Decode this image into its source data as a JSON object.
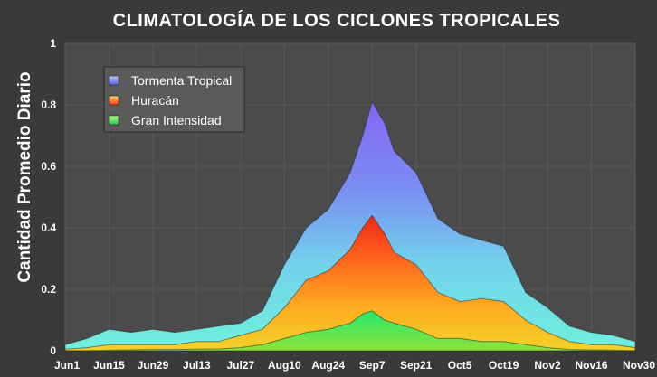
{
  "chart_data": {
    "type": "area",
    "title": "CLIMATOLOGÍA DE LOS CICLONES TROPICALES",
    "xlabel": "",
    "ylabel": "Cantidad Promedio Diario",
    "x_tick_labels": [
      "Jun1",
      "Jun15",
      "Jun29",
      "Jul13",
      "Jul27",
      "Aug10",
      "Aug24",
      "Sep7",
      "Sep21",
      "Oct5",
      "Oct19",
      "Nov2",
      "Nov16",
      "Nov30"
    ],
    "y_tick_labels": [
      "0",
      "0.2",
      "0.4",
      "0.6",
      "0.8",
      "1"
    ],
    "ylim": [
      0,
      1
    ],
    "grid": true,
    "legend_position": "top-left",
    "series": [
      {
        "name": "Tormenta Tropical",
        "color": "#7b82f2",
        "points": [
          [
            "Jun1",
            0.02
          ],
          [
            "Jun8",
            0.04
          ],
          [
            "Jun15",
            0.07
          ],
          [
            "Jun22",
            0.06
          ],
          [
            "Jun29",
            0.07
          ],
          [
            "Jul6",
            0.06
          ],
          [
            "Jul13",
            0.07
          ],
          [
            "Jul20",
            0.08
          ],
          [
            "Jul27",
            0.09
          ],
          [
            "Aug3",
            0.13
          ],
          [
            "Aug10",
            0.28
          ],
          [
            "Aug17",
            0.4
          ],
          [
            "Aug24",
            0.46
          ],
          [
            "Aug31",
            0.58
          ],
          [
            "Sep4",
            0.7
          ],
          [
            "Sep7",
            0.81
          ],
          [
            "Sep11",
            0.74
          ],
          [
            "Sep14",
            0.65
          ],
          [
            "Sep21",
            0.58
          ],
          [
            "Sep28",
            0.43
          ],
          [
            "Oct5",
            0.38
          ],
          [
            "Oct12",
            0.36
          ],
          [
            "Oct19",
            0.34
          ],
          [
            "Oct26",
            0.19
          ],
          [
            "Nov2",
            0.14
          ],
          [
            "Nov9",
            0.08
          ],
          [
            "Nov16",
            0.06
          ],
          [
            "Nov23",
            0.05
          ],
          [
            "Nov30",
            0.03
          ]
        ]
      },
      {
        "name": "Huracán",
        "color": "#ff5a1f",
        "points": [
          [
            "Jun1",
            0.005
          ],
          [
            "Jun8",
            0.01
          ],
          [
            "Jun15",
            0.02
          ],
          [
            "Jun22",
            0.02
          ],
          [
            "Jun29",
            0.02
          ],
          [
            "Jul6",
            0.02
          ],
          [
            "Jul13",
            0.03
          ],
          [
            "Jul20",
            0.03
          ],
          [
            "Jul27",
            0.05
          ],
          [
            "Aug3",
            0.07
          ],
          [
            "Aug10",
            0.14
          ],
          [
            "Aug17",
            0.23
          ],
          [
            "Aug24",
            0.26
          ],
          [
            "Aug31",
            0.33
          ],
          [
            "Sep4",
            0.4
          ],
          [
            "Sep7",
            0.44
          ],
          [
            "Sep11",
            0.38
          ],
          [
            "Sep14",
            0.32
          ],
          [
            "Sep21",
            0.28
          ],
          [
            "Sep28",
            0.19
          ],
          [
            "Oct5",
            0.16
          ],
          [
            "Oct12",
            0.17
          ],
          [
            "Oct19",
            0.16
          ],
          [
            "Oct26",
            0.1
          ],
          [
            "Nov2",
            0.06
          ],
          [
            "Nov9",
            0.03
          ],
          [
            "Nov16",
            0.02
          ],
          [
            "Nov23",
            0.02
          ],
          [
            "Nov30",
            0.01
          ]
        ]
      },
      {
        "name": "Gran Intensidad",
        "color": "#33e05a",
        "points": [
          [
            "Jun1",
            0.0
          ],
          [
            "Jun8",
            0.0
          ],
          [
            "Jun15",
            0.002
          ],
          [
            "Jun22",
            0.003
          ],
          [
            "Jun29",
            0.004
          ],
          [
            "Jul6",
            0.004
          ],
          [
            "Jul13",
            0.005
          ],
          [
            "Jul20",
            0.006
          ],
          [
            "Jul27",
            0.01
          ],
          [
            "Aug3",
            0.02
          ],
          [
            "Aug10",
            0.04
          ],
          [
            "Aug17",
            0.06
          ],
          [
            "Aug24",
            0.07
          ],
          [
            "Aug31",
            0.09
          ],
          [
            "Sep4",
            0.12
          ],
          [
            "Sep7",
            0.13
          ],
          [
            "Sep11",
            0.1
          ],
          [
            "Sep14",
            0.09
          ],
          [
            "Sep21",
            0.07
          ],
          [
            "Sep28",
            0.04
          ],
          [
            "Oct5",
            0.04
          ],
          [
            "Oct12",
            0.03
          ],
          [
            "Oct19",
            0.03
          ],
          [
            "Oct26",
            0.02
          ],
          [
            "Nov2",
            0.01
          ],
          [
            "Nov9",
            0.004
          ],
          [
            "Nov16",
            0.003
          ],
          [
            "Nov23",
            0.002
          ],
          [
            "Nov30",
            0.0
          ]
        ]
      }
    ]
  }
}
